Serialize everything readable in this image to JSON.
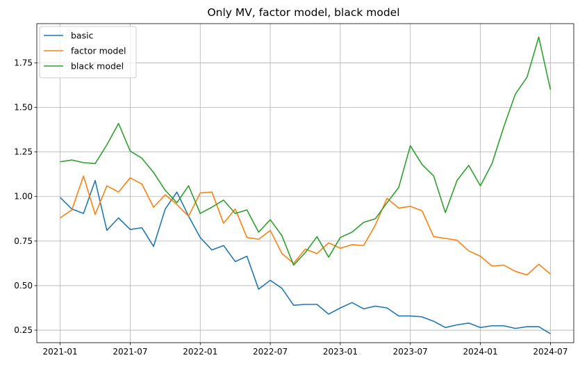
{
  "chart_data": {
    "type": "line",
    "title": "Only MV, factor model, black model",
    "xlabel": "",
    "ylabel": "",
    "x_ticks": [
      "2021-01",
      "2021-07",
      "2022-01",
      "2022-07",
      "2023-01",
      "2023-07",
      "2024-01",
      "2024-07"
    ],
    "y_ticks": [
      "0.25",
      "0.50",
      "0.75",
      "1.00",
      "1.25",
      "1.50",
      "1.75"
    ],
    "ylim": [
      0.18,
      1.97
    ],
    "xlim": [
      "2020-11",
      "2024-09"
    ],
    "grid": true,
    "legend_position": "top-left",
    "x": [
      "2021-01",
      "2021-02",
      "2021-03",
      "2021-04",
      "2021-05",
      "2021-06",
      "2021-07",
      "2021-08",
      "2021-09",
      "2021-10",
      "2021-11",
      "2021-12",
      "2022-01",
      "2022-02",
      "2022-03",
      "2022-04",
      "2022-05",
      "2022-06",
      "2022-07",
      "2022-08",
      "2022-09",
      "2022-10",
      "2022-11",
      "2022-12",
      "2023-01",
      "2023-02",
      "2023-03",
      "2023-04",
      "2023-05",
      "2023-06",
      "2023-07",
      "2023-08",
      "2023-09",
      "2023-10",
      "2023-11",
      "2023-12",
      "2024-01",
      "2024-02",
      "2024-03",
      "2024-04",
      "2024-05",
      "2024-06",
      "2024-07"
    ],
    "series": [
      {
        "name": "basic",
        "color": "#1f77b4",
        "values": [
          0.995,
          0.93,
          0.905,
          1.09,
          0.81,
          0.88,
          0.815,
          0.825,
          0.72,
          0.93,
          1.025,
          0.89,
          0.77,
          0.7,
          0.725,
          0.635,
          0.665,
          0.48,
          0.53,
          0.485,
          0.39,
          0.395,
          0.395,
          0.34,
          0.375,
          0.405,
          0.37,
          0.385,
          0.375,
          0.33,
          0.33,
          0.325,
          0.3,
          0.265,
          0.28,
          0.29,
          0.265,
          0.275,
          0.275,
          0.26,
          0.27,
          0.27,
          0.23
        ]
      },
      {
        "name": "factor model",
        "color": "#ff7f0e",
        "values": [
          0.88,
          0.925,
          1.115,
          0.9,
          1.06,
          1.025,
          1.105,
          1.07,
          0.94,
          1.01,
          0.955,
          0.89,
          1.02,
          1.025,
          0.85,
          0.93,
          0.77,
          0.76,
          0.81,
          0.68,
          0.625,
          0.705,
          0.68,
          0.74,
          0.71,
          0.73,
          0.725,
          0.84,
          0.99,
          0.935,
          0.945,
          0.92,
          0.775,
          0.765,
          0.755,
          0.695,
          0.665,
          0.61,
          0.615,
          0.58,
          0.56,
          0.62,
          0.565
        ]
      },
      {
        "name": "black model",
        "color": "#2ca02c",
        "values": [
          1.195,
          1.205,
          1.19,
          1.185,
          1.29,
          1.41,
          1.255,
          1.215,
          1.135,
          1.035,
          0.965,
          1.06,
          0.905,
          0.94,
          0.98,
          0.905,
          0.925,
          0.8,
          0.87,
          0.78,
          0.615,
          0.685,
          0.775,
          0.66,
          0.77,
          0.8,
          0.855,
          0.875,
          0.965,
          1.05,
          1.285,
          1.18,
          1.115,
          0.91,
          1.09,
          1.175,
          1.06,
          1.185,
          1.39,
          1.575,
          1.67,
          1.895,
          1.6
        ]
      }
    ]
  }
}
